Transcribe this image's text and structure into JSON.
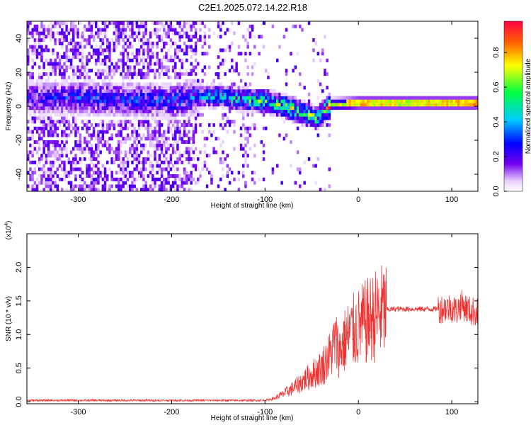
{
  "title": "C2E1.2025.072.14.22.R18",
  "chart_data": [
    {
      "type": "heatmap",
      "xlabel": "Height of straight line (km)",
      "ylabel": "Frequency (Hz)",
      "xlim": [
        -355,
        128
      ],
      "ylim": [
        -50,
        50
      ],
      "xticks": [
        -300,
        -200,
        -100,
        0,
        100
      ],
      "yticks": [
        -40,
        -20,
        0,
        20,
        40
      ],
      "colorbar": {
        "label": "Normalized spectral amplitude",
        "range": [
          0,
          0.98
        ],
        "ticks": [
          0.0,
          0.2,
          0.4,
          0.6,
          0.8
        ],
        "tick_labels": [
          "0.0",
          "0.2",
          "0.4",
          "0.6",
          "0.8"
        ],
        "colormap": "rainbow (white-violet-blue-cyan-green-yellow-red)"
      },
      "ridge": [
        {
          "x": -355,
          "freq": 4,
          "amp": 0.2
        },
        {
          "x": -300,
          "freq": 4,
          "amp": 0.25
        },
        {
          "x": -250,
          "freq": 3,
          "amp": 0.25
        },
        {
          "x": -200,
          "freq": 2,
          "amp": 0.28
        },
        {
          "x": -175,
          "freq": 5,
          "amp": 0.32
        },
        {
          "x": -150,
          "freq": 5,
          "amp": 0.38
        },
        {
          "x": -125,
          "freq": 3,
          "amp": 0.45
        },
        {
          "x": -100,
          "freq": 2,
          "amp": 0.5
        },
        {
          "x": -80,
          "freq": -1,
          "amp": 0.55
        },
        {
          "x": -60,
          "freq": -5,
          "amp": 0.52
        },
        {
          "x": -45,
          "freq": -8,
          "amp": 0.5
        },
        {
          "x": -30,
          "freq": 0,
          "amp": 0.75
        },
        {
          "x": 0,
          "freq": 1,
          "amp": 0.8
        },
        {
          "x": 50,
          "freq": 1,
          "amp": 0.75
        },
        {
          "x": 100,
          "freq": 1,
          "amp": 0.8
        },
        {
          "x": 128,
          "freq": 1,
          "amp": 0.9
        }
      ]
    },
    {
      "type": "line",
      "xlabel": "Height of straight line (km)",
      "ylabel": "SNR (10 * v/v)",
      "yscale_label": "(x10^4)",
      "yscale_base": "(x10",
      "yscale_exp": "4",
      "yscale_close": ")",
      "xlim": [
        -355,
        128
      ],
      "ylim": [
        -0.03,
        2.5
      ],
      "xticks": [
        -300,
        -200,
        -100,
        0,
        100
      ],
      "yticks": [
        0.0,
        0.5,
        1.0,
        1.5,
        2.0
      ],
      "ytick_labels": [
        "0.0",
        "0.5",
        "1.0",
        "1.5",
        "2.0"
      ],
      "line_color": "#ee3333",
      "series": [
        {
          "x": [
            -355,
            -300,
            -250,
            -200,
            -150,
            -120,
            -100,
            -90,
            -80,
            -70,
            -60,
            -50,
            -40,
            -30,
            -25,
            -20,
            -15,
            -10,
            -5,
            0,
            10,
            20,
            30,
            40,
            50,
            60,
            70,
            80,
            90,
            100,
            105,
            110,
            115,
            120,
            128
          ],
          "values": [
            0.02,
            0.02,
            0.02,
            0.02,
            0.02,
            0.02,
            0.02,
            0.05,
            0.12,
            0.2,
            0.3,
            0.4,
            0.5,
            0.7,
            0.9,
            0.75,
            0.9,
            1.0,
            1.05,
            1.1,
            1.2,
            1.3,
            1.37,
            1.38,
            1.38,
            1.38,
            1.38,
            1.38,
            1.39,
            1.4,
            1.35,
            1.45,
            1.4,
            1.35,
            1.33
          ]
        }
      ]
    }
  ]
}
